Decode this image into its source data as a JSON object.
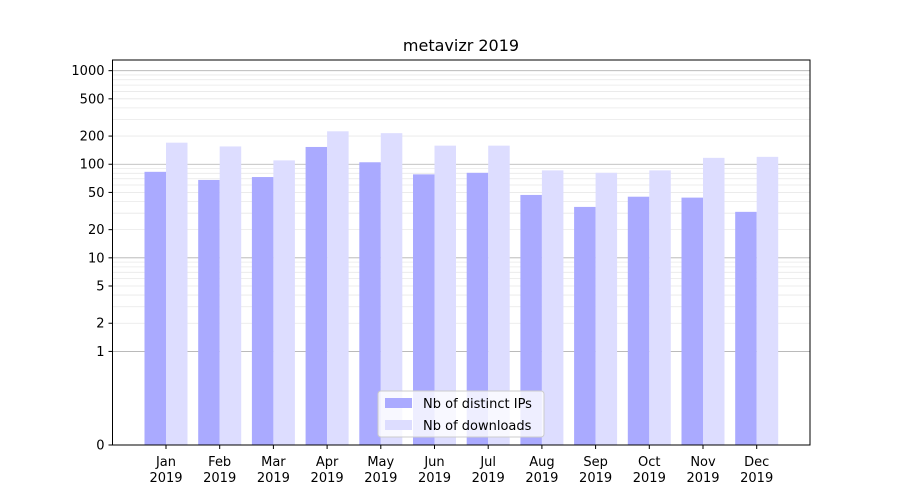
{
  "chart_data": {
    "type": "bar",
    "title": "metavizr 2019",
    "xlabel": "",
    "ylabel": "",
    "yscale": "symlog",
    "ylim": [
      0,
      1300
    ],
    "yticks": [
      0,
      1,
      2,
      5,
      10,
      20,
      50,
      100,
      200,
      500,
      1000
    ],
    "grid": true,
    "legend_position": "bottom-center",
    "categories": [
      "Jan\n2019",
      "Feb\n2019",
      "Mar\n2019",
      "Apr\n2019",
      "May\n2019",
      "Jun\n2019",
      "Jul\n2019",
      "Aug\n2019",
      "Sep\n2019",
      "Oct\n2019",
      "Nov\n2019",
      "Dec\n2019"
    ],
    "series": [
      {
        "name": "Nb of distinct IPs",
        "color": "#aaaaff",
        "values": [
          83,
          68,
          73,
          153,
          105,
          78,
          81,
          47,
          35,
          45,
          44,
          31
        ]
      },
      {
        "name": "Nb of downloads",
        "color": "#ddddff",
        "values": [
          170,
          155,
          110,
          225,
          215,
          158,
          158,
          86,
          81,
          86,
          117,
          120
        ]
      }
    ]
  }
}
